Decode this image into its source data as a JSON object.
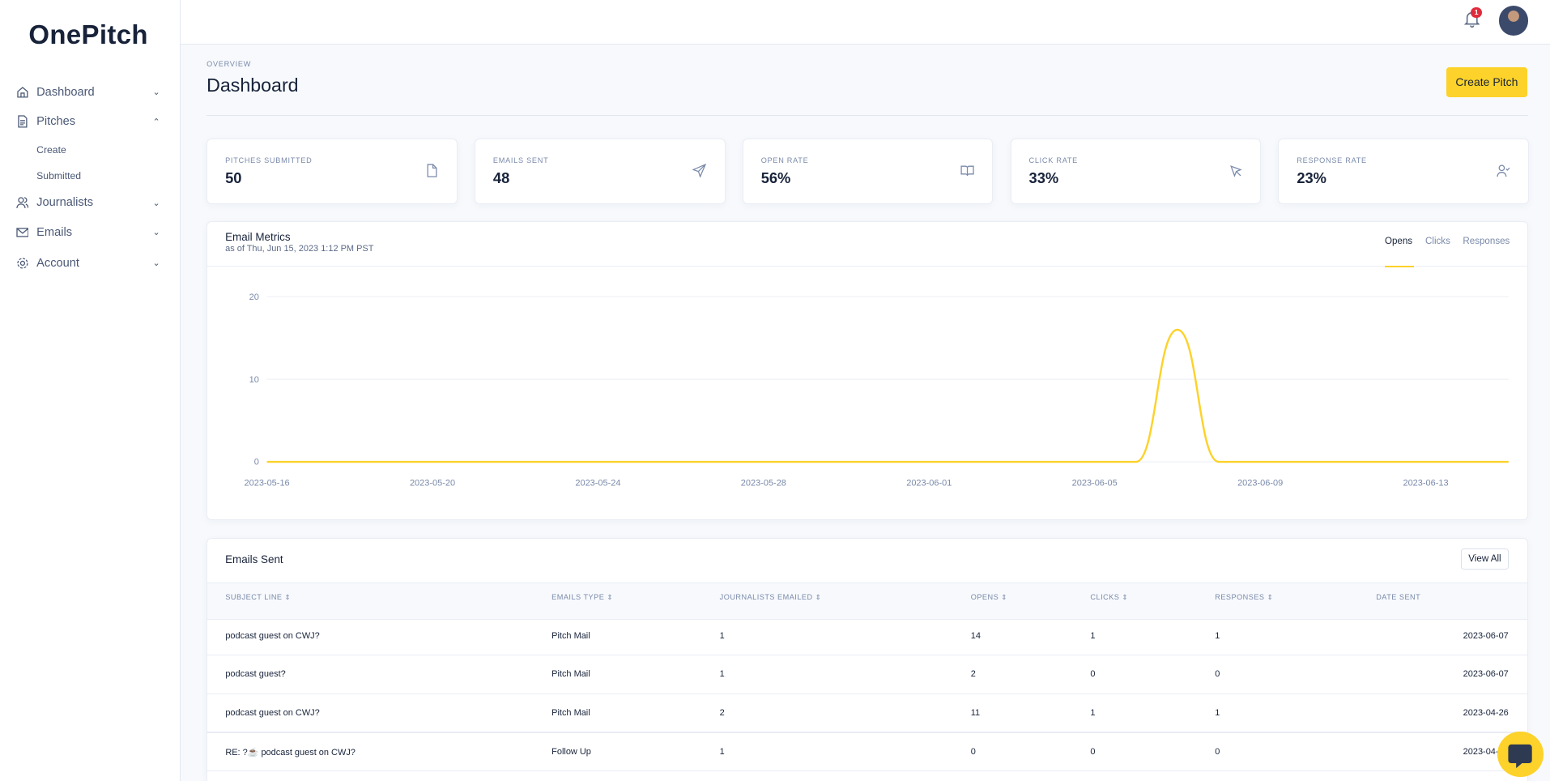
{
  "brand": "OnePitch",
  "sidebar": {
    "items": [
      {
        "label": "Dashboard",
        "icon": "home-icon",
        "expanded": false
      },
      {
        "label": "Pitches",
        "icon": "document-icon",
        "expanded": true,
        "children": [
          "Create",
          "Submitted"
        ]
      },
      {
        "label": "Journalists",
        "icon": "users-icon",
        "expanded": false
      },
      {
        "label": "Emails",
        "icon": "mail-icon",
        "expanded": false
      },
      {
        "label": "Account",
        "icon": "gear-icon",
        "expanded": false
      }
    ]
  },
  "topbar": {
    "notification_count": "1"
  },
  "header": {
    "overline": "OVERVIEW",
    "title": "Dashboard",
    "create_button": "Create Pitch"
  },
  "stats": [
    {
      "label": "PITCHES SUBMITTED",
      "value": "50",
      "icon": "file-icon"
    },
    {
      "label": "EMAILS SENT",
      "value": "48",
      "icon": "send-icon"
    },
    {
      "label": "OPEN RATE",
      "value": "56%",
      "icon": "book-open-icon"
    },
    {
      "label": "CLICK RATE",
      "value": "33%",
      "icon": "cursor-icon"
    },
    {
      "label": "RESPONSE RATE",
      "value": "23%",
      "icon": "user-check-icon"
    }
  ],
  "metrics": {
    "title": "Email Metrics",
    "subtitle": "as of Thu, Jun 15, 2023 1:12 PM PST",
    "tabs": [
      "Opens",
      "Clicks",
      "Responses"
    ],
    "active_tab": "Opens",
    "accent": "#fdd22a"
  },
  "chart_data": {
    "type": "line",
    "title": "Email Metrics",
    "series": [
      {
        "name": "Opens",
        "x": [
          "2023-05-16",
          "2023-06-06",
          "2023-06-07",
          "2023-06-08",
          "2023-06-15"
        ],
        "values": [
          0,
          0,
          16,
          0,
          0
        ]
      }
    ],
    "x_ticks": [
      "2023-05-16",
      "2023-05-20",
      "2023-05-24",
      "2023-05-28",
      "2023-06-01",
      "2023-06-05",
      "2023-06-09",
      "2023-06-13"
    ],
    "y_ticks": [
      "0",
      "10",
      "20"
    ],
    "ylim": [
      0,
      20
    ],
    "xlim": [
      "2023-05-16",
      "2023-06-15"
    ],
    "grid": true
  },
  "emails": {
    "title": "Emails Sent",
    "view_all": "View All",
    "columns": [
      "SUBJECT LINE",
      "EMAILS TYPE",
      "JOURNALISTS EMAILED",
      "OPENS",
      "CLICKS",
      "RESPONSES",
      "DATE SENT"
    ],
    "rows": [
      [
        "podcast guest on CWJ?",
        "Pitch Mail",
        "1",
        "14",
        "1",
        "1",
        "2023-06-07"
      ],
      [
        "podcast guest?",
        "Pitch Mail",
        "1",
        "2",
        "0",
        "0",
        "2023-06-07"
      ],
      [
        "podcast guest on CWJ?",
        "Pitch Mail",
        "2",
        "11",
        "1",
        "1",
        "2023-04-26"
      ],
      [
        "RE: ?☕ podcast guest on CWJ?",
        "Follow Up",
        "1",
        "0",
        "0",
        "0",
        "2023-04-26"
      ]
    ]
  }
}
